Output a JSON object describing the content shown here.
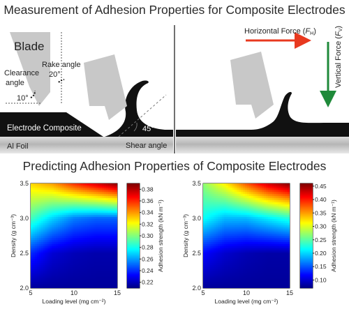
{
  "title": "Measurement of Adhesion Properties for Composite Electrodes",
  "subtitle": "Predicting Adhesion Properties of Composite Electrodes",
  "schematic": {
    "blade_label": "Blade",
    "rake_angle_label": "Rake angle",
    "rake_angle_value": "20°",
    "clearance_angle_label_line1": "Clearance",
    "clearance_angle_label_line2": "angle",
    "clearance_angle_value": "10°",
    "shear_angle_value": "45°",
    "shear_angle_label": "Shear angle",
    "electrode_label": "Electrode Composite",
    "foil_label": "Al Foil",
    "horizontal_force_label": "Horizontal Force (",
    "horizontal_force_symbol": "F",
    "horizontal_force_subscript": "H",
    "vertical_force_label": "Vertical Force (",
    "vertical_force_symbol": "F",
    "vertical_force_subscript": "V",
    "closing_paren": ")"
  },
  "colors": {
    "horizontal_arrow": "#e8391f",
    "vertical_arrow": "#1f8a3a",
    "blade": "#c8c8c8",
    "composite": "#111111",
    "foil_gradient_mid": "#b5b5b5"
  },
  "chart_data": [
    {
      "type": "heatmap",
      "xlabel": "Loading level (mg cm⁻²)",
      "ylabel": "Density (g cm⁻³)",
      "xlim": [
        5,
        15
      ],
      "ylim": [
        2.0,
        3.5
      ],
      "xticks": [
        "5",
        "10",
        "15"
      ],
      "yticks": [
        "2.0",
        "2.5",
        "3.0",
        "3.5"
      ],
      "colorbar_label": "Adhesion strength (kN m⁻¹)",
      "colorbar_range": [
        0.21,
        0.39
      ],
      "colorbar_ticks": [
        "0.22",
        "0.24",
        "0.26",
        "0.28",
        "0.30",
        "0.32",
        "0.34",
        "0.36",
        "0.38"
      ],
      "grid": {
        "x": [
          5,
          7.5,
          10,
          12.5,
          15
        ],
        "y": [
          2.0,
          2.5,
          3.0,
          3.5
        ],
        "z": [
          [
            0.215,
            0.215,
            0.215,
            0.215,
            0.215
          ],
          [
            0.24,
            0.225,
            0.22,
            0.218,
            0.218
          ],
          [
            0.29,
            0.27,
            0.255,
            0.25,
            0.25
          ],
          [
            0.33,
            0.34,
            0.36,
            0.375,
            0.39
          ]
        ]
      }
    },
    {
      "type": "heatmap",
      "xlabel": "Loading level (mg cm⁻²)",
      "ylabel": "Density (g cm⁻³)",
      "xlim": [
        5,
        15
      ],
      "ylim": [
        2.0,
        3.5
      ],
      "xticks": [
        "5",
        "10",
        "15"
      ],
      "yticks": [
        "2.0",
        "2.5",
        "3.0",
        "3.5"
      ],
      "colorbar_label": "Adhesion strength (kN m⁻¹)",
      "colorbar_range": [
        0.07,
        0.46
      ],
      "colorbar_ticks": [
        "0.10",
        "0.15",
        "0.20",
        "0.25",
        "0.30",
        "0.35",
        "0.40",
        "0.45"
      ],
      "grid": {
        "x": [
          5,
          7.5,
          10,
          12.5,
          15
        ],
        "y": [
          2.0,
          2.5,
          3.0,
          3.5
        ],
        "z": [
          [
            0.08,
            0.08,
            0.08,
            0.08,
            0.08
          ],
          [
            0.12,
            0.1,
            0.09,
            0.085,
            0.085
          ],
          [
            0.22,
            0.19,
            0.19,
            0.21,
            0.23
          ],
          [
            0.27,
            0.32,
            0.38,
            0.43,
            0.46
          ]
        ]
      }
    }
  ]
}
